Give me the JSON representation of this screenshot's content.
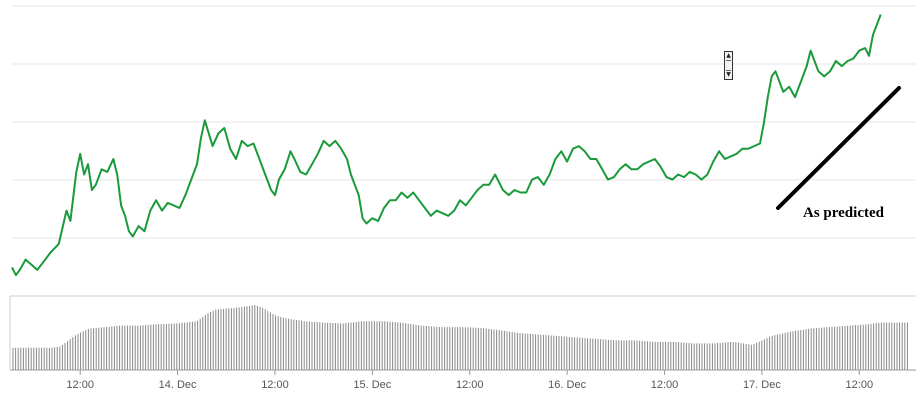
{
  "chart_data": {
    "type": "line",
    "title": "",
    "xlabel": "",
    "ylabel": "",
    "x_tick_labels": [
      "12:00",
      "14. Dec",
      "12:00",
      "15. Dec",
      "12:00",
      "16. Dec",
      "12:00",
      "17. Dec",
      "12:00"
    ],
    "x_range_days": [
      0,
      4.6
    ],
    "x_tick_positions_days": [
      0.35,
      0.85,
      1.35,
      1.85,
      2.35,
      2.85,
      3.35,
      3.85,
      4.35
    ],
    "y_range": [
      0,
      100
    ],
    "grid": true,
    "line_color": "#1a9a3a",
    "series": [
      {
        "values": [
          [
            0.0,
            8
          ],
          [
            0.02,
            5
          ],
          [
            0.04,
            7
          ],
          [
            0.07,
            11
          ],
          [
            0.1,
            9
          ],
          [
            0.13,
            7
          ],
          [
            0.16,
            10
          ],
          [
            0.2,
            14
          ],
          [
            0.24,
            17
          ],
          [
            0.28,
            30
          ],
          [
            0.3,
            26
          ],
          [
            0.33,
            45
          ],
          [
            0.35,
            52
          ],
          [
            0.37,
            44
          ],
          [
            0.39,
            48
          ],
          [
            0.41,
            38
          ],
          [
            0.43,
            40
          ],
          [
            0.46,
            46
          ],
          [
            0.49,
            45
          ],
          [
            0.52,
            50
          ],
          [
            0.54,
            44
          ],
          [
            0.56,
            32
          ],
          [
            0.58,
            28
          ],
          [
            0.6,
            22
          ],
          [
            0.62,
            20
          ],
          [
            0.65,
            24
          ],
          [
            0.68,
            22
          ],
          [
            0.71,
            30
          ],
          [
            0.74,
            34
          ],
          [
            0.77,
            30
          ],
          [
            0.8,
            33
          ],
          [
            0.83,
            32
          ],
          [
            0.86,
            31
          ],
          [
            0.89,
            36
          ],
          [
            0.92,
            42
          ],
          [
            0.95,
            48
          ],
          [
            0.97,
            58
          ],
          [
            0.99,
            65
          ],
          [
            1.01,
            60
          ],
          [
            1.03,
            55
          ],
          [
            1.06,
            60
          ],
          [
            1.09,
            62
          ],
          [
            1.12,
            54
          ],
          [
            1.15,
            50
          ],
          [
            1.18,
            57
          ],
          [
            1.21,
            55
          ],
          [
            1.24,
            56
          ],
          [
            1.27,
            50
          ],
          [
            1.3,
            44
          ],
          [
            1.33,
            38
          ],
          [
            1.35,
            36
          ],
          [
            1.37,
            42
          ],
          [
            1.4,
            46
          ],
          [
            1.43,
            53
          ],
          [
            1.45,
            50
          ],
          [
            1.48,
            45
          ],
          [
            1.51,
            44
          ],
          [
            1.54,
            48
          ],
          [
            1.57,
            52
          ],
          [
            1.6,
            57
          ],
          [
            1.63,
            55
          ],
          [
            1.66,
            57
          ],
          [
            1.69,
            54
          ],
          [
            1.72,
            50
          ],
          [
            1.74,
            44
          ],
          [
            1.76,
            40
          ],
          [
            1.78,
            36
          ],
          [
            1.8,
            27
          ],
          [
            1.82,
            25
          ],
          [
            1.85,
            27
          ],
          [
            1.88,
            26
          ],
          [
            1.91,
            31
          ],
          [
            1.94,
            34
          ],
          [
            1.97,
            34
          ],
          [
            2.0,
            37
          ],
          [
            2.03,
            35
          ],
          [
            2.06,
            37
          ],
          [
            2.09,
            34
          ],
          [
            2.12,
            31
          ],
          [
            2.15,
            28
          ],
          [
            2.18,
            30
          ],
          [
            2.21,
            29
          ],
          [
            2.24,
            28
          ],
          [
            2.27,
            30
          ],
          [
            2.3,
            34
          ],
          [
            2.33,
            32
          ],
          [
            2.36,
            35
          ],
          [
            2.39,
            38
          ],
          [
            2.42,
            40
          ],
          [
            2.45,
            40
          ],
          [
            2.48,
            44
          ],
          [
            2.5,
            41
          ],
          [
            2.52,
            38
          ],
          [
            2.55,
            36
          ],
          [
            2.58,
            38
          ],
          [
            2.61,
            37
          ],
          [
            2.64,
            37
          ],
          [
            2.67,
            42
          ],
          [
            2.7,
            43
          ],
          [
            2.73,
            40
          ],
          [
            2.76,
            44
          ],
          [
            2.79,
            50
          ],
          [
            2.82,
            53
          ],
          [
            2.85,
            49
          ],
          [
            2.88,
            54
          ],
          [
            2.91,
            55
          ],
          [
            2.94,
            53
          ],
          [
            2.97,
            50
          ],
          [
            3.0,
            50
          ],
          [
            3.03,
            46
          ],
          [
            3.06,
            42
          ],
          [
            3.09,
            43
          ],
          [
            3.12,
            46
          ],
          [
            3.15,
            48
          ],
          [
            3.18,
            46
          ],
          [
            3.21,
            46
          ],
          [
            3.24,
            48
          ],
          [
            3.27,
            49
          ],
          [
            3.3,
            50
          ],
          [
            3.33,
            47
          ],
          [
            3.36,
            43
          ],
          [
            3.39,
            42
          ],
          [
            3.42,
            44
          ],
          [
            3.45,
            43
          ],
          [
            3.48,
            45
          ],
          [
            3.51,
            44
          ],
          [
            3.54,
            42
          ],
          [
            3.57,
            44
          ],
          [
            3.6,
            49
          ],
          [
            3.63,
            53
          ],
          [
            3.66,
            50
          ],
          [
            3.69,
            51
          ],
          [
            3.72,
            52
          ],
          [
            3.75,
            54
          ],
          [
            3.78,
            54
          ],
          [
            3.81,
            55
          ],
          [
            3.84,
            56
          ],
          [
            3.86,
            64
          ],
          [
            3.88,
            74
          ],
          [
            3.9,
            82
          ],
          [
            3.92,
            84
          ],
          [
            3.94,
            80
          ],
          [
            3.96,
            76
          ],
          [
            3.99,
            78
          ],
          [
            4.02,
            74
          ],
          [
            4.05,
            80
          ],
          [
            4.08,
            86
          ],
          [
            4.1,
            92
          ],
          [
            4.12,
            88
          ],
          [
            4.14,
            84
          ],
          [
            4.17,
            82
          ],
          [
            4.2,
            84
          ],
          [
            4.23,
            88
          ],
          [
            4.26,
            86
          ],
          [
            4.29,
            88
          ],
          [
            4.32,
            89
          ],
          [
            4.35,
            92
          ],
          [
            4.38,
            93
          ],
          [
            4.4,
            90
          ],
          [
            4.42,
            98
          ],
          [
            4.44,
            102
          ],
          [
            4.46,
            106
          ]
        ]
      }
    ],
    "volume": {
      "color": "#888888",
      "values": [
        [
          0.0,
          30
        ],
        [
          0.1,
          30
        ],
        [
          0.2,
          30
        ],
        [
          0.25,
          32
        ],
        [
          0.28,
          38
        ],
        [
          0.32,
          46
        ],
        [
          0.36,
          52
        ],
        [
          0.4,
          56
        ],
        [
          0.48,
          58
        ],
        [
          0.55,
          60
        ],
        [
          0.65,
          60
        ],
        [
          0.75,
          62
        ],
        [
          0.85,
          63
        ],
        [
          0.95,
          66
        ],
        [
          1.0,
          76
        ],
        [
          1.05,
          82
        ],
        [
          1.15,
          84
        ],
        [
          1.2,
          86
        ],
        [
          1.25,
          88
        ],
        [
          1.3,
          82
        ],
        [
          1.35,
          74
        ],
        [
          1.4,
          70
        ],
        [
          1.5,
          66
        ],
        [
          1.6,
          64
        ],
        [
          1.7,
          63
        ],
        [
          1.8,
          66
        ],
        [
          1.9,
          66
        ],
        [
          2.0,
          64
        ],
        [
          2.1,
          60
        ],
        [
          2.2,
          58
        ],
        [
          2.3,
          58
        ],
        [
          2.4,
          57
        ],
        [
          2.5,
          54
        ],
        [
          2.6,
          50
        ],
        [
          2.7,
          48
        ],
        [
          2.8,
          46
        ],
        [
          2.9,
          44
        ],
        [
          3.0,
          42
        ],
        [
          3.1,
          40
        ],
        [
          3.2,
          40
        ],
        [
          3.3,
          38
        ],
        [
          3.4,
          38
        ],
        [
          3.5,
          36
        ],
        [
          3.6,
          36
        ],
        [
          3.7,
          38
        ],
        [
          3.8,
          34
        ],
        [
          3.9,
          46
        ],
        [
          4.0,
          52
        ],
        [
          4.1,
          56
        ],
        [
          4.2,
          58
        ],
        [
          4.3,
          60
        ],
        [
          4.4,
          62
        ],
        [
          4.46,
          64
        ]
      ]
    },
    "annotation": {
      "text": "As predicted",
      "color": "#000000"
    }
  }
}
